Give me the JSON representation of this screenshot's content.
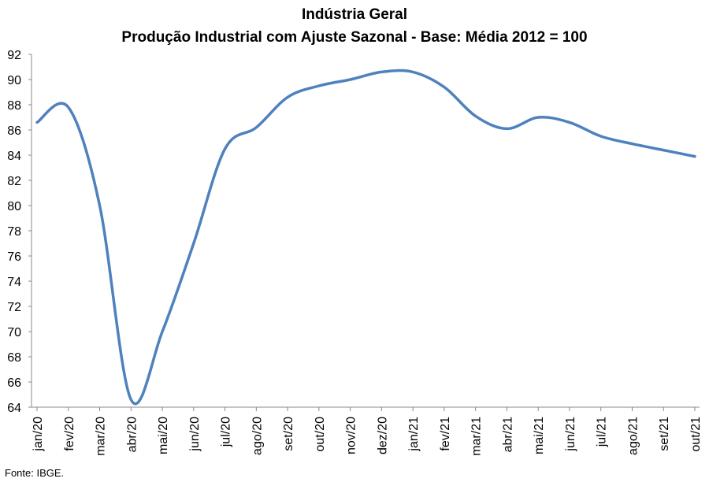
{
  "chart_data": {
    "type": "line",
    "title": "Indústria Geral",
    "subtitle": "Produção Industrial com Ajuste Sazonal - Base: Média 2012 = 100",
    "xlabel": "",
    "ylabel": "",
    "categories": [
      "jan/20",
      "fev/20",
      "mar/20",
      "abr/20",
      "mai/20",
      "jun/20",
      "jul/20",
      "ago/20",
      "set/20",
      "out/20",
      "nov/20",
      "dez/20",
      "jan/21",
      "fev/21",
      "mar/21",
      "abr/21",
      "mai/21",
      "jun/21",
      "jul/21",
      "ago/21",
      "set/21",
      "out/21"
    ],
    "yticks": [
      "64",
      "66",
      "68",
      "70",
      "72",
      "74",
      "76",
      "78",
      "80",
      "82",
      "84",
      "86",
      "88",
      "90",
      "92"
    ],
    "ylim": [
      64,
      92
    ],
    "grid": false,
    "legend": "none",
    "color": "#4f81bd",
    "series": [
      {
        "values": [
          86.6,
          87.8,
          80.0,
          64.6,
          70.0,
          77.0,
          84.5,
          86.2,
          88.6,
          89.5,
          90.0,
          90.6,
          90.6,
          89.4,
          87.1,
          86.1,
          87.0,
          86.6,
          85.5,
          84.9,
          84.4,
          83.9
        ]
      }
    ]
  },
  "source": "Fonte: IBGE."
}
